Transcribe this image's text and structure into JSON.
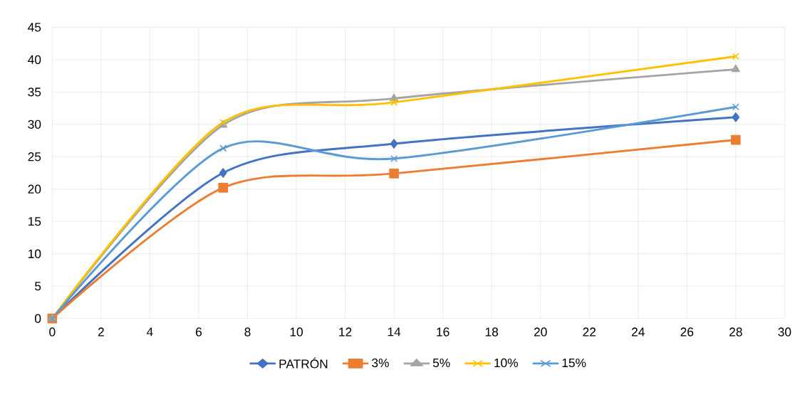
{
  "chart_data": {
    "type": "line",
    "x": [
      0,
      7,
      14,
      28
    ],
    "xlim": [
      0,
      30
    ],
    "ylim": [
      0,
      45
    ],
    "xticks": [
      0,
      2,
      4,
      6,
      8,
      10,
      12,
      14,
      16,
      18,
      20,
      22,
      24,
      26,
      28,
      30
    ],
    "yticks": [
      0,
      5,
      10,
      15,
      20,
      25,
      30,
      35,
      40,
      45
    ],
    "grid": true,
    "legend": "bottom",
    "line_style": "solid",
    "series": [
      {
        "name": "PATRÓN",
        "color": "#4472c4",
        "marker": "diamond",
        "values": [
          0,
          22.5,
          27,
          31.1
        ]
      },
      {
        "name": "3%",
        "color": "#ed7d31",
        "marker": "square",
        "values": [
          0,
          20.2,
          22.4,
          27.6
        ]
      },
      {
        "name": "5%",
        "color": "#a5a5a5",
        "marker": "triangle",
        "values": [
          0,
          29.9,
          34,
          38.5
        ]
      },
      {
        "name": "10%",
        "color": "#ffc000",
        "marker": "cross",
        "values": [
          0,
          30.3,
          33.4,
          40.5
        ]
      },
      {
        "name": "15%",
        "color": "#5b9bd5",
        "marker": "cross",
        "values": [
          0,
          26.3,
          24.7,
          32.7
        ]
      }
    ]
  }
}
